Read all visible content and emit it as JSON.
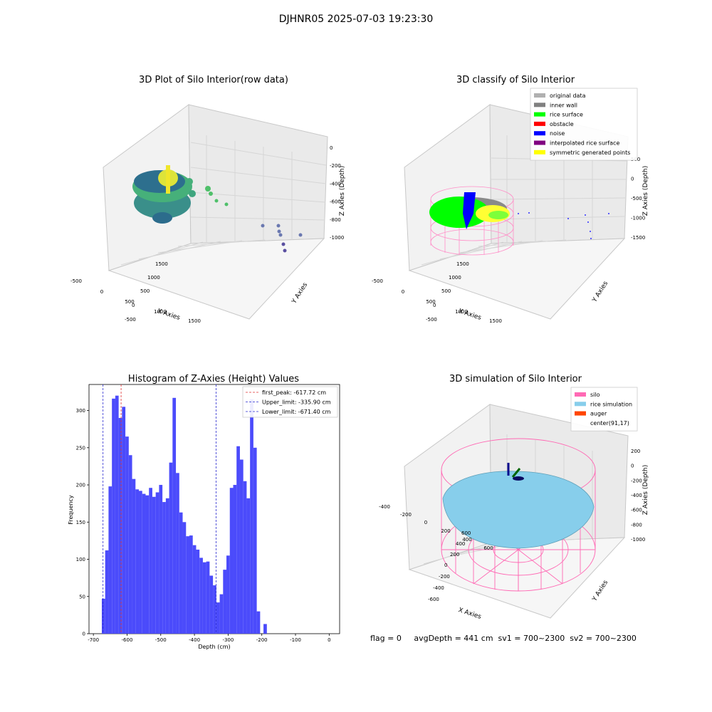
{
  "figure_title": "DJHNR05 2025-07-03 19:23:30",
  "colors": {
    "hist_bar": "#4b4bfb",
    "first_peak": "#e03030",
    "limit_line": "#2a2ad0",
    "silo_pink": "#ff69b4",
    "rice_sim": "#87ceeb",
    "rice_green": "#00ff00",
    "noise_blue": "#0000ff",
    "pane": "#f2f2f2",
    "grid": "#d9d9d9"
  },
  "plots3d": [
    {
      "title": "3D Plot of Silo Interior(row data)",
      "x_label": "X Axies",
      "y_label": "Y Axies",
      "z_label": "Z Axies (Depth)",
      "x_ticks": [
        "-500",
        "0",
        "500",
        "1000",
        "1500"
      ],
      "y_ticks": [
        "-500",
        "0",
        "500",
        "1000",
        "1500"
      ],
      "z_ticks": [
        "0",
        "-200",
        "-400",
        "-600",
        "-800",
        "-1000"
      ]
    },
    {
      "title": "3D classify of Silo Interior",
      "x_label": "X Axies",
      "y_label": "Y Axies",
      "z_label": "Z Axies (Depth)",
      "x_ticks": [
        "-500",
        "0",
        "500",
        "1000",
        "1500"
      ],
      "y_ticks": [
        "-500",
        "0",
        "500",
        "1000",
        "1500"
      ],
      "z_ticks": [
        "500",
        "0",
        "-500",
        "-1000",
        "-1500"
      ],
      "legend": [
        {
          "label": "original data",
          "color": "#b0b0b0"
        },
        {
          "label": "inner wall",
          "color": "#808080"
        },
        {
          "label": "rice surface",
          "color": "#00ff00"
        },
        {
          "label": "obstacle",
          "color": "#ff0000"
        },
        {
          "label": "noise",
          "color": "#0000ff"
        },
        {
          "label": "interpolated rice surface",
          "color": "#800080"
        },
        {
          "label": "symmetric generated points",
          "color": "#ffff00"
        }
      ]
    },
    {
      "title": "3D simulation of Silo Interior",
      "x_label": "X Axies",
      "y_label": "Y Axies",
      "z_label": "Z Axies (Depth)",
      "x_ticks": [
        "-400",
        "-200",
        "0",
        "200",
        "400",
        "600"
      ],
      "y_ticks": [
        "-600",
        "-400",
        "-200",
        "0",
        "200",
        "400",
        "600"
      ],
      "z_ticks": [
        "200",
        "0",
        "-200",
        "-400",
        "-600",
        "-800",
        "-1000"
      ],
      "legend": [
        {
          "label": "silo",
          "color": "#ff69b4"
        },
        {
          "label": "rice simulation",
          "color": "#87ceeb"
        },
        {
          "label": "auger",
          "color": "#ff4500"
        },
        {
          "label": "center(91,17)",
          "color": "none"
        }
      ]
    }
  ],
  "status_line": "flag = 0     avgDepth = 441 cm  sv1 = 700~2300  sv2 = 700~2300",
  "chart_data": {
    "type": "bar",
    "title": "Histogram of Z-Axies (Height) Values",
    "xlabel": "Depth (cm)",
    "ylabel": "Frequency",
    "xlim": [
      -700,
      0
    ],
    "ylim": [
      0,
      330
    ],
    "x_ticks": [
      -700,
      -600,
      -500,
      -400,
      -300,
      -200,
      -100,
      0
    ],
    "y_ticks": [
      0,
      50,
      100,
      150,
      200,
      250,
      300
    ],
    "bin_start": -675,
    "bin_width": 10,
    "values": [
      47,
      112,
      198,
      316,
      320,
      290,
      305,
      265,
      240,
      208,
      194,
      192,
      188,
      186,
      196,
      184,
      190,
      200,
      177,
      182,
      230,
      317,
      216,
      163,
      150,
      131,
      132,
      119,
      113,
      102,
      96,
      97,
      78,
      65,
      42,
      53,
      86,
      105,
      196,
      200,
      252,
      234,
      205,
      182,
      315,
      250,
      30,
      0,
      13
    ],
    "series": [
      {
        "name": "Z-Axies (Height) Values"
      }
    ],
    "lines": [
      {
        "label": "first_peak: -617.72 cm",
        "x": -617.72,
        "color": "#e03030"
      },
      {
        "label": "Upper_limit: -335.90 cm",
        "x": -335.9,
        "color": "#2a2ad0"
      },
      {
        "label": "Lower_limit: -671.40 cm",
        "x": -671.4,
        "color": "#2a2ad0"
      }
    ]
  }
}
